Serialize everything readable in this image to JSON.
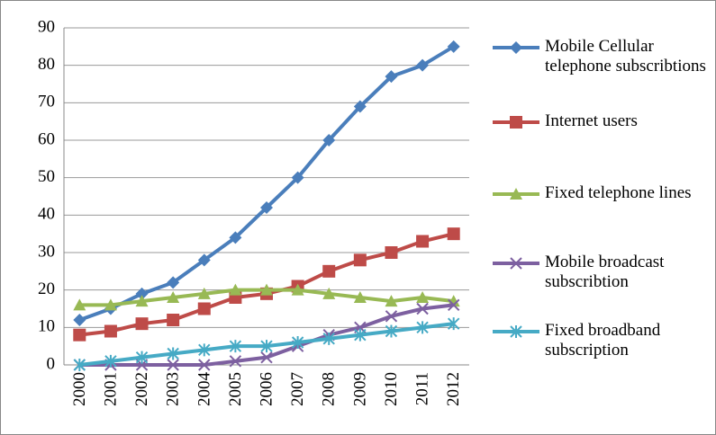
{
  "chart_data": {
    "type": "line",
    "categories": [
      "2000",
      "2001",
      "2002",
      "2003",
      "2004",
      "2005",
      "2006",
      "2007",
      "2008",
      "2009",
      "2010",
      "2011",
      "2012"
    ],
    "series": [
      {
        "name": "Mobile Cellular telephone subscribtions",
        "color": "#4a7ebb",
        "marker": "diamond",
        "values": [
          12,
          15,
          19,
          22,
          28,
          34,
          42,
          50,
          60,
          69,
          77,
          80,
          85
        ]
      },
      {
        "name": "Internet users",
        "color": "#be4b48",
        "marker": "square",
        "values": [
          8,
          9,
          11,
          12,
          15,
          18,
          19,
          21,
          25,
          28,
          30,
          33,
          35
        ]
      },
      {
        "name": "Fixed telephone lines",
        "color": "#98b954",
        "marker": "triangle",
        "values": [
          16,
          16,
          17,
          18,
          19,
          20,
          20,
          20,
          19,
          18,
          17,
          18,
          17
        ]
      },
      {
        "name": "Mobile broadcast subscribtion",
        "color": "#7d60a0",
        "marker": "x",
        "values": [
          0,
          0,
          0,
          0,
          0,
          1,
          2,
          5,
          8,
          10,
          13,
          15,
          16
        ]
      },
      {
        "name": "Fixed broadband subscription",
        "color": "#46aac5",
        "marker": "star",
        "values": [
          0,
          1,
          2,
          3,
          4,
          5,
          5,
          6,
          7,
          8,
          9,
          10,
          11
        ]
      }
    ],
    "ylim": [
      0,
      90
    ],
    "yticks": [
      0,
      10,
      20,
      30,
      40,
      50,
      60,
      70,
      80,
      90
    ],
    "grid": true,
    "legend": "right"
  }
}
